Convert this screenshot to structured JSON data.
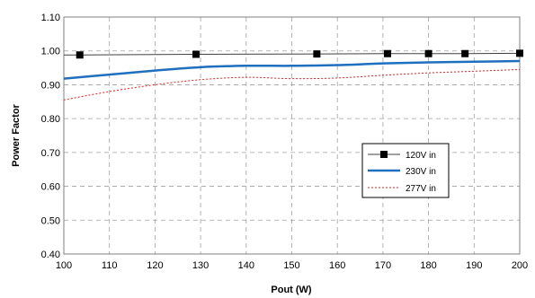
{
  "chart_data": {
    "type": "line",
    "xlabel": "Pout (W)",
    "ylabel": "Power Factor",
    "xlim": [
      100,
      200
    ],
    "ylim": [
      0.4,
      1.1
    ],
    "xticks": [
      100,
      110,
      120,
      130,
      140,
      150,
      160,
      170,
      180,
      190,
      200
    ],
    "yticks": [
      0.4,
      0.5,
      0.6,
      0.7,
      0.8,
      0.9,
      1.0,
      1.1
    ],
    "xtick_labels": [
      "100",
      "110",
      "120",
      "130",
      "140",
      "150",
      "160",
      "170",
      "180",
      "190",
      "200"
    ],
    "ytick_labels": [
      "0.40",
      "0.50",
      "0.60",
      "0.70",
      "0.80",
      "0.90",
      "1.00",
      "1.10"
    ],
    "grid": "dashed",
    "legend_position": "right-center",
    "series": [
      {
        "name": "120V in",
        "color": "#404040",
        "style": "solid-with-square-markers",
        "x": [
          103.5,
          129,
          155.5,
          171,
          180,
          188,
          200
        ],
        "y": [
          0.988,
          0.99,
          0.991,
          0.992,
          0.992,
          0.992,
          0.993
        ]
      },
      {
        "name": "230V in",
        "color": "#1f6fbf",
        "style": "solid-thick",
        "x": [
          100,
          110,
          120,
          130,
          140,
          150,
          160,
          170,
          180,
          190,
          200
        ],
        "y": [
          0.918,
          0.93,
          0.942,
          0.952,
          0.956,
          0.956,
          0.958,
          0.963,
          0.966,
          0.968,
          0.97
        ]
      },
      {
        "name": "277V in",
        "color": "#e02020",
        "style": "dotted",
        "x": [
          100,
          110,
          120,
          130,
          140,
          150,
          160,
          170,
          180,
          190,
          200
        ],
        "y": [
          0.855,
          0.88,
          0.9,
          0.915,
          0.922,
          0.918,
          0.92,
          0.928,
          0.935,
          0.94,
          0.945
        ]
      }
    ]
  }
}
